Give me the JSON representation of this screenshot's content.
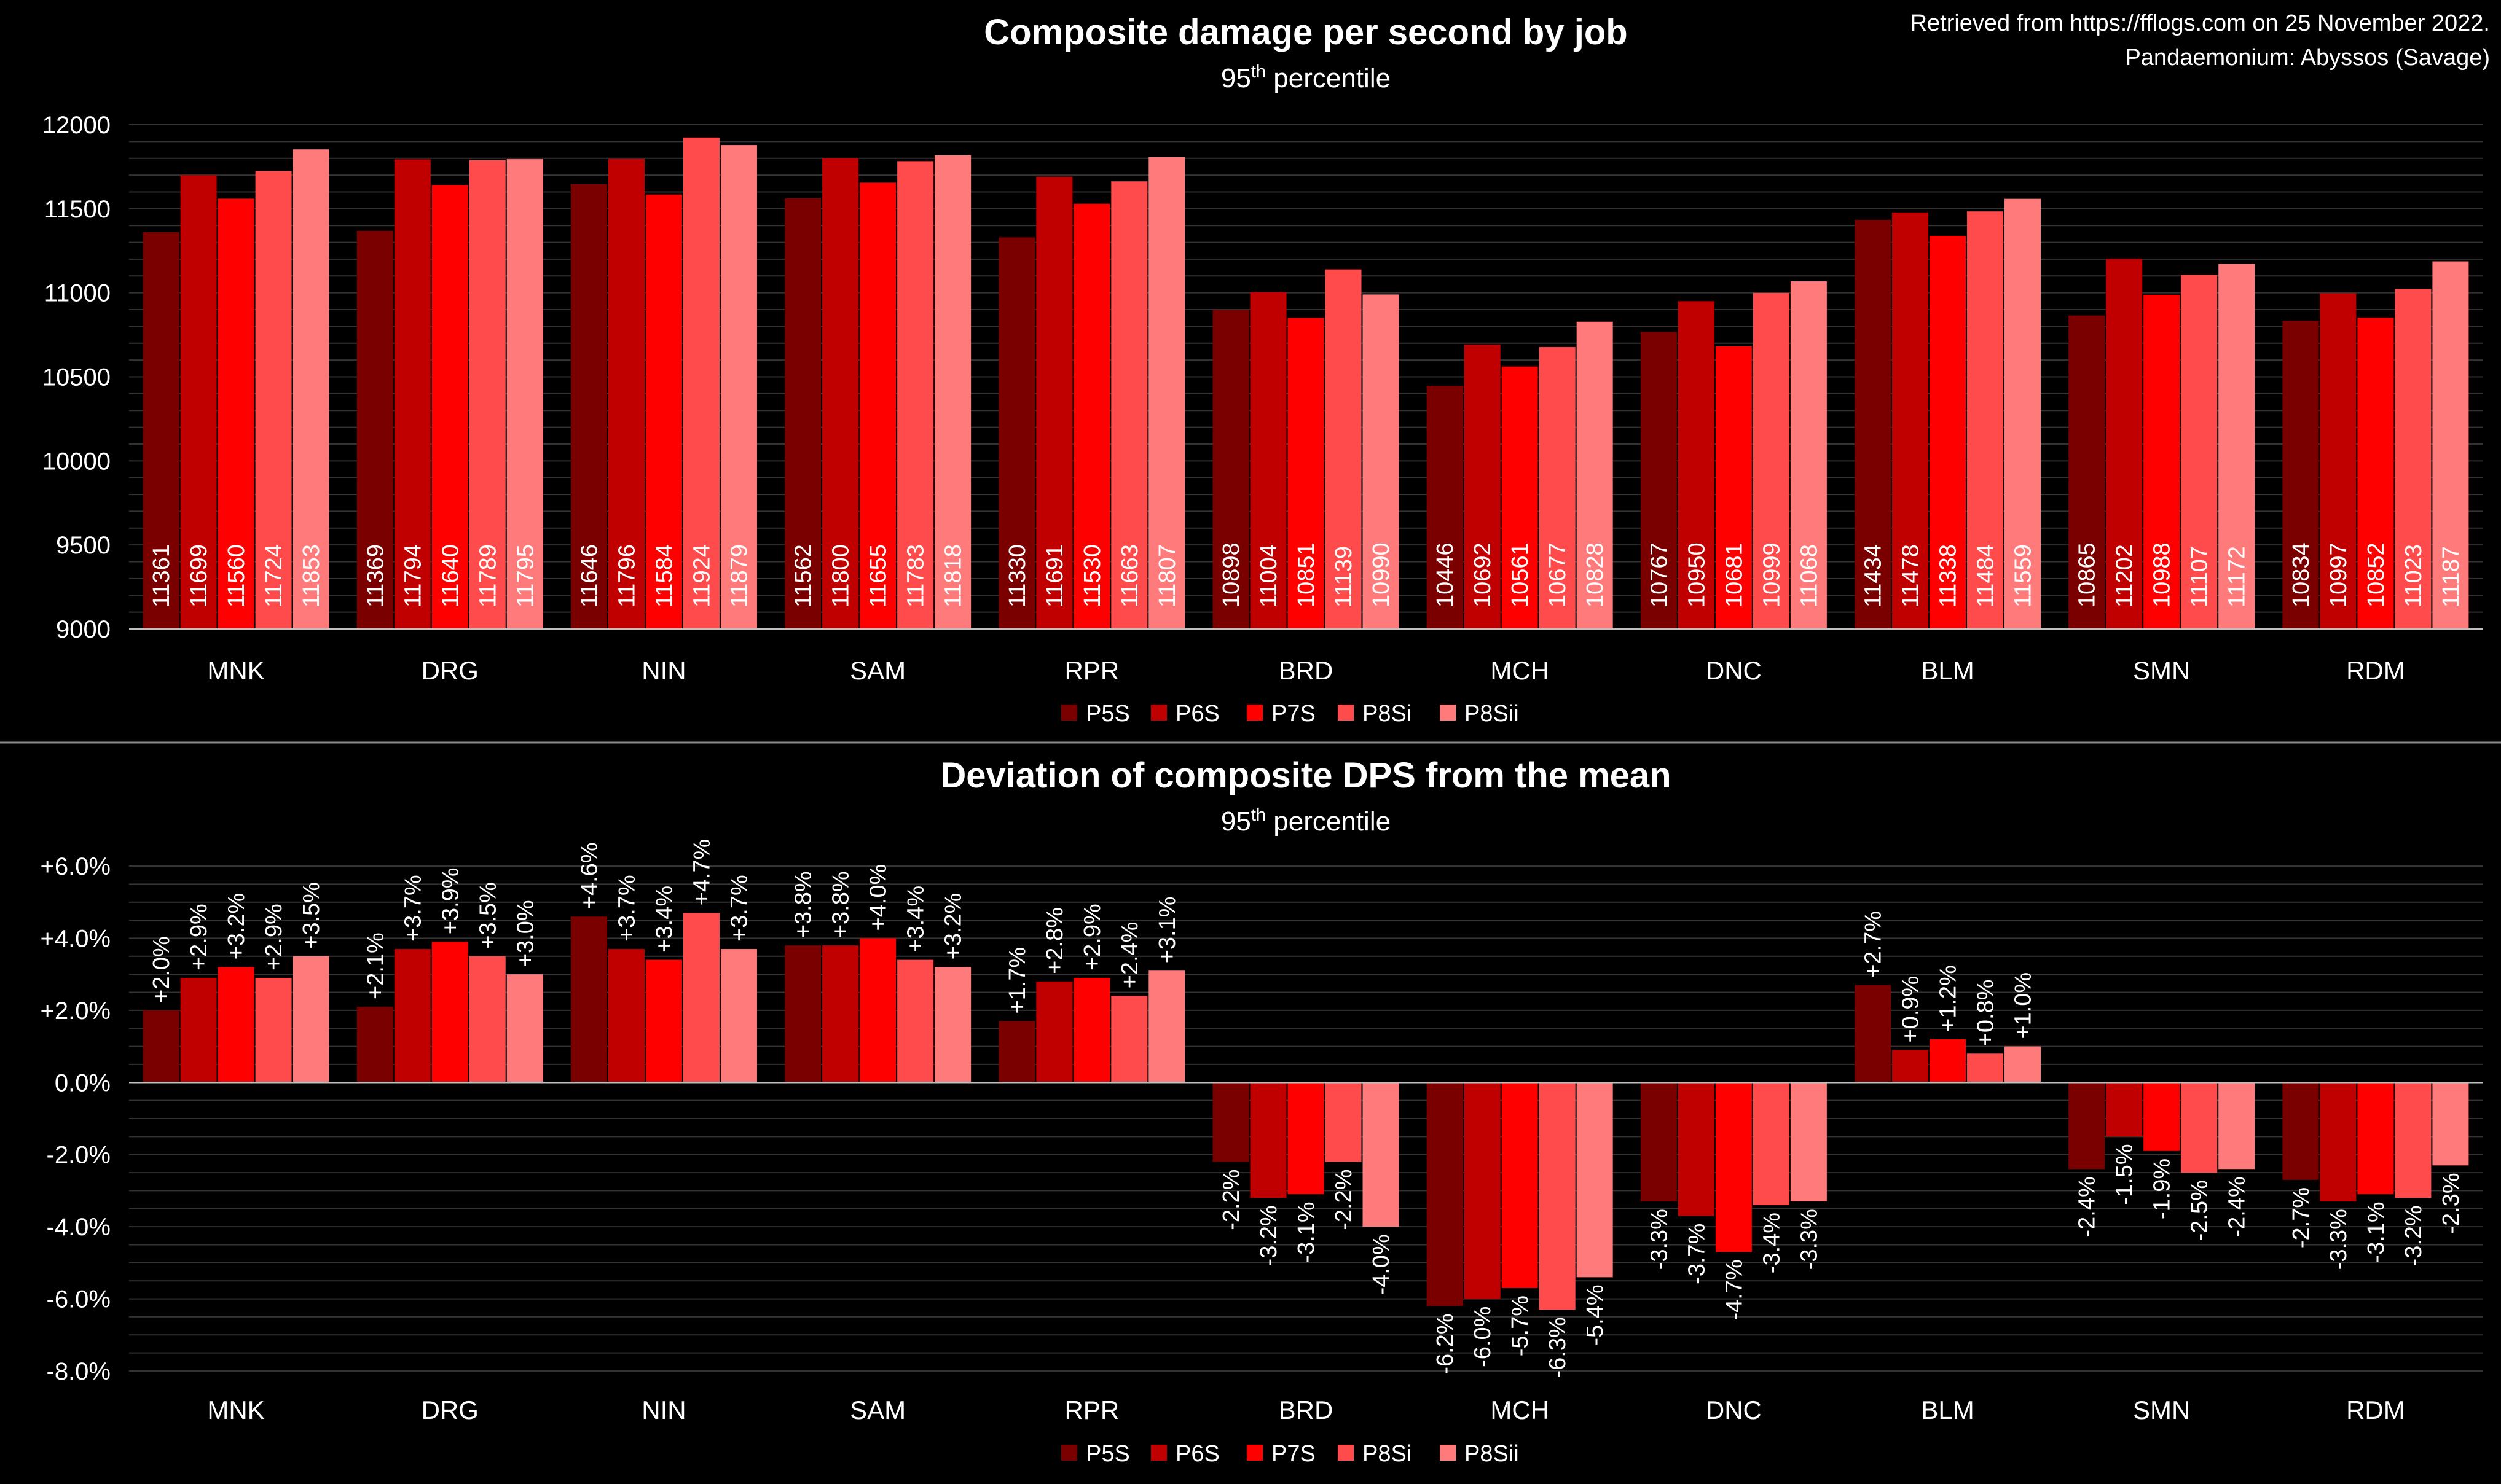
{
  "source_note": {
    "line1": "Retrieved from https://fflogs.com on 25 November 2022.",
    "line2": "Pandaemonium: Abyssos (Savage)"
  },
  "colors": {
    "P5S": "#7a0000",
    "P6S": "#c00000",
    "P7S": "#ff0000",
    "P8Si": "#ff4b4b",
    "P8Sii": "#ff7b7b"
  },
  "chart_data": [
    {
      "type": "bar",
      "title": "Composite damage per second by job",
      "subtitle_base": "95",
      "subtitle_sup": "th",
      "subtitle_rest": " percentile",
      "categories": [
        "MNK",
        "DRG",
        "NIN",
        "SAM",
        "RPR",
        "BRD",
        "MCH",
        "DNC",
        "BLM",
        "SMN",
        "RDM"
      ],
      "ylim": [
        9000,
        12000
      ],
      "yticks": [
        9000,
        9500,
        10000,
        10500,
        11000,
        11500,
        12000
      ],
      "ytick_labels": [
        "9000",
        "9500",
        "10000",
        "10500",
        "11000",
        "11500",
        "12000"
      ],
      "series": [
        {
          "name": "P5S",
          "values": [
            11361,
            11369,
            11646,
            11562,
            11330,
            10898,
            10446,
            10767,
            11434,
            10865,
            10834
          ]
        },
        {
          "name": "P6S",
          "values": [
            11699,
            11794,
            11796,
            11800,
            11691,
            11004,
            10692,
            10950,
            11478,
            11202,
            10997
          ]
        },
        {
          "name": "P7S",
          "values": [
            11560,
            11640,
            11584,
            11655,
            11530,
            10851,
            10561,
            10681,
            11338,
            10988,
            10852
          ]
        },
        {
          "name": "P8Si",
          "values": [
            11724,
            11789,
            11924,
            11783,
            11663,
            11139,
            10677,
            10999,
            11484,
            11107,
            11023
          ]
        },
        {
          "name": "P8Sii",
          "values": [
            11853,
            11795,
            11879,
            11818,
            11807,
            10990,
            10828,
            11068,
            11559,
            11172,
            11187
          ]
        }
      ]
    },
    {
      "type": "bar",
      "title": "Deviation of composite DPS from the mean",
      "subtitle_base": "95",
      "subtitle_sup": "th",
      "subtitle_rest": " percentile",
      "categories": [
        "MNK",
        "DRG",
        "NIN",
        "SAM",
        "RPR",
        "BRD",
        "MCH",
        "DNC",
        "BLM",
        "SMN",
        "RDM"
      ],
      "ylim": [
        -8.0,
        6.0
      ],
      "yticks": [
        -8,
        -6,
        -4,
        -2,
        0,
        2,
        4,
        6
      ],
      "ytick_labels": [
        "-8.0%",
        "-6.0%",
        "-4.0%",
        "-2.0%",
        "0.0%",
        "+2.0%",
        "+4.0%",
        "+6.0%"
      ],
      "unit": "%",
      "series": [
        {
          "name": "P5S",
          "values": [
            2.0,
            2.1,
            4.6,
            3.8,
            1.7,
            -2.2,
            -6.2,
            -3.3,
            2.7,
            -2.4,
            -2.7
          ]
        },
        {
          "name": "P6S",
          "values": [
            2.9,
            3.7,
            3.7,
            3.8,
            2.8,
            -3.2,
            -6.0,
            -3.7,
            0.9,
            -1.5,
            -3.3
          ]
        },
        {
          "name": "P7S",
          "values": [
            3.2,
            3.9,
            3.4,
            4.0,
            2.9,
            -3.1,
            -5.7,
            -4.7,
            1.2,
            -1.9,
            -3.1
          ]
        },
        {
          "name": "P8Si",
          "values": [
            2.9,
            3.5,
            4.7,
            3.4,
            2.4,
            -2.2,
            -6.3,
            -3.4,
            0.8,
            -2.5,
            -3.2
          ]
        },
        {
          "name": "P8Sii",
          "values": [
            3.5,
            3.0,
            3.7,
            3.2,
            3.1,
            -4.0,
            -5.4,
            -3.3,
            1.0,
            -2.4,
            -2.3
          ]
        }
      ]
    }
  ]
}
